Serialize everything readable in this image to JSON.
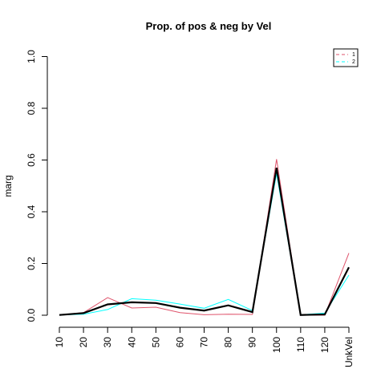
{
  "chart_data": {
    "type": "line",
    "title": "Prop. of pos & neg by Vel",
    "xlabel": "",
    "ylabel": "marg",
    "categories": [
      "10",
      "20",
      "30",
      "40",
      "50",
      "60",
      "70",
      "80",
      "90",
      "100",
      "110",
      "120",
      "UnkVel"
    ],
    "ylim": [
      0,
      1
    ],
    "yticks": [
      "0.0",
      "0.2",
      "0.4",
      "0.6",
      "0.8",
      "1.0"
    ],
    "grid": false,
    "legend_position": "top-right",
    "series": [
      {
        "name": "",
        "color": "#000000",
        "values": [
          0.001,
          0.008,
          0.042,
          0.05,
          0.047,
          0.029,
          0.018,
          0.038,
          0.012,
          0.57,
          0.001,
          0.003,
          0.185
        ]
      },
      {
        "name": "1",
        "color": "#DF536B",
        "values": [
          0.001,
          0.01,
          0.068,
          0.028,
          0.031,
          0.01,
          0.002,
          0.004,
          0.003,
          0.603,
          0.0,
          0.0,
          0.24
        ]
      },
      {
        "name": "2",
        "color": "#00FFFF",
        "values": [
          0.001,
          0.004,
          0.022,
          0.064,
          0.058,
          0.043,
          0.027,
          0.061,
          0.018,
          0.548,
          0.002,
          0.008,
          0.155
        ]
      }
    ]
  }
}
